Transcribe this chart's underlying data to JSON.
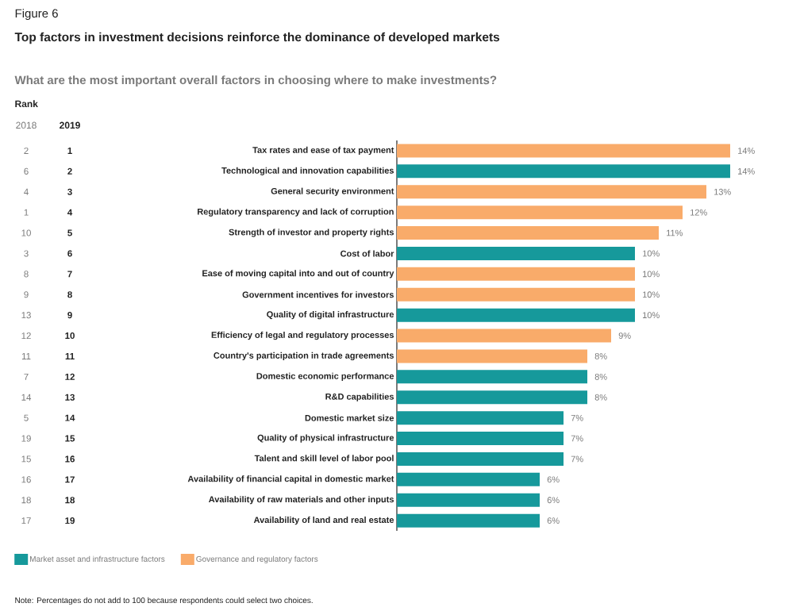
{
  "chart_data": {
    "type": "bar",
    "orientation": "horizontal",
    "title": "Top factors in investment decisions reinforce the dominance of developed markets",
    "subtitle": "What are the most important overall factors in choosing where to make investments?",
    "categories": [
      "Tax rates and ease of tax payment",
      "Technological and innovation capabilities",
      "General security environment",
      "Regulatory transparency and lack of corruption",
      "Strength of investor and property rights",
      "Cost of labor",
      "Ease of moving capital into and out of country",
      "Government incentives for investors",
      "Quality of digital infrastructure",
      "Efficiency of legal and regulatory processes",
      "Country's participation in trade agreements",
      "Domestic economic performance",
      "R&D capabilities",
      "Domestic market size",
      "Quality of physical infrastructure",
      "Talent and skill level of labor pool",
      "Availability of financial capital in domestic market",
      "Availability of raw materials and other inputs",
      "Availability of land and real estate"
    ],
    "series": [
      {
        "name": "Market asset and infrastructure factors",
        "color": "#16999b",
        "values": [
          null,
          14,
          null,
          null,
          null,
          10,
          null,
          null,
          10,
          null,
          null,
          8,
          8,
          7,
          7,
          7,
          6,
          6,
          6
        ],
        "value_labels": [
          null,
          "14%",
          null,
          null,
          null,
          "10%",
          null,
          null,
          "10%",
          null,
          null,
          "8%",
          "8%",
          "7%",
          "7%",
          "7%",
          "6%",
          "6%",
          "6%"
        ]
      },
      {
        "name": "Governance and regulatory factors",
        "color": "#f9ab6a",
        "values": [
          14,
          null,
          13,
          12,
          11,
          null,
          10,
          10,
          null,
          9,
          8,
          null,
          null,
          null,
          null,
          null,
          null,
          null,
          null
        ],
        "value_labels": [
          "14%",
          null,
          "13%",
          "12%",
          "11%",
          null,
          "10%",
          "10%",
          null,
          "9%",
          "8%",
          null,
          null,
          null,
          null,
          null,
          null,
          null,
          null
        ]
      }
    ],
    "legend": "bottom left",
    "annotations": [
      "Figure 6",
      "Rank",
      "2018",
      "2019",
      "2",
      "1",
      "6",
      "2",
      "4",
      "3",
      "1",
      "4",
      "10",
      "5",
      "3",
      "6",
      "8",
      "7",
      "9",
      "8",
      "13",
      "9",
      "12",
      "10",
      "11",
      "11",
      "7",
      "12",
      "14",
      "13",
      "5",
      "14",
      "19",
      "15",
      "15",
      "16",
      "16",
      "17",
      "18",
      "18",
      "17",
      "19",
      "Note: Percentages do not add to 100 because respondents could select two choices."
    ]
  }
}
